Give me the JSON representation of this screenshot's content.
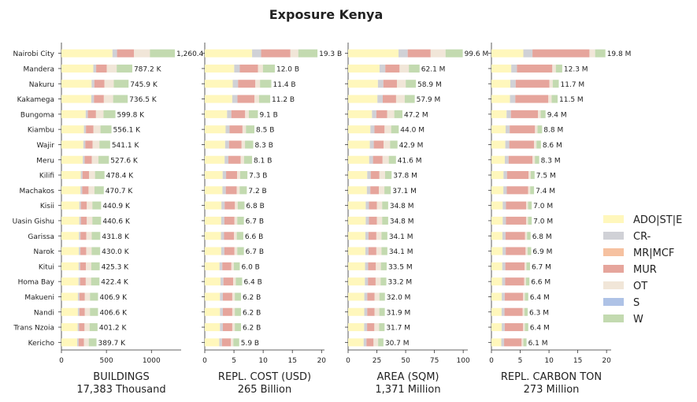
{
  "title": "Exposure Kenya",
  "legend": {
    "placement": "right",
    "items": [
      {
        "label": "ADO|ST|E",
        "color": "#fff7bc"
      },
      {
        "label": "CR-",
        "color": "#d0d1d6"
      },
      {
        "label": "MR|MCF",
        "color": "#f6c1a0"
      },
      {
        "label": "MUR",
        "color": "#e6a59c"
      },
      {
        "label": "OT",
        "color": "#f1e6d8"
      },
      {
        "label": "S",
        "color": "#aec2e6"
      },
      {
        "label": "W",
        "color": "#c3dab0"
      }
    ]
  },
  "chart_data": {
    "type": "bar",
    "orientation": "horizontal",
    "stacked": true,
    "categories": [
      "Nairobi City",
      "Mandera",
      "Nakuru",
      "Kakamega",
      "Bungoma",
      "Kiambu",
      "Wajir",
      "Meru",
      "Kilifi",
      "Machakos",
      "Kisii",
      "Uasin Gishu",
      "Garissa",
      "Narok",
      "Kitui",
      "Homa Bay",
      "Makueni",
      "Nandi",
      "Trans Nzoia",
      "Kericho"
    ],
    "panels": [
      {
        "xlabel": "BUILDINGS",
        "subtitle": "17,383 Thousand",
        "xlim": [
          0,
          1330
        ],
        "ticks": [
          0,
          500,
          1000
        ],
        "totals": [
          1260.4,
          787.2,
          745.9,
          736.5,
          599.8,
          556.1,
          541.1,
          527.6,
          478.4,
          470.7,
          440.9,
          440.6,
          431.8,
          430.0,
          425.3,
          422.4,
          406.9,
          406.6,
          401.2,
          389.7
        ],
        "labels": [
          "1,260.4",
          "787.2 K",
          "745.9 K",
          "736.5 K",
          "599.8 K",
          "556.1 K",
          "541.1 K",
          "527.6 K",
          "478.4 K",
          "470.7 K",
          "440.9 K",
          "440.6 K",
          "431.8 K",
          "430.0 K",
          "425.3 K",
          "422.4 K",
          "406.9 K",
          "406.6 K",
          "401.2 K",
          "389.7 K"
        ],
        "shares": [
          0.45,
          0.04,
          0,
          0.15,
          0.14,
          0,
          0.22
        ]
      },
      {
        "xlabel": "REPL. COST (USD)",
        "subtitle": "265 Billion",
        "xlim": [
          0,
          20.5
        ],
        "ticks": [
          0,
          5,
          10,
          15,
          20
        ],
        "totals": [
          19.3,
          12.0,
          11.4,
          11.2,
          9.1,
          8.5,
          8.3,
          8.1,
          7.3,
          7.2,
          6.8,
          6.7,
          6.6,
          6.7,
          6.0,
          6.4,
          6.2,
          6.2,
          6.2,
          5.9
        ],
        "labels": [
          "19.3 B",
          "12.0 B",
          "11.4 B",
          "11.2 B",
          "9.1 B",
          "8.5 B",
          "8.3 B",
          "8.1 B",
          "7.3 B",
          "7.2 B",
          "6.8 B",
          "6.7 B",
          "6.6 B",
          "6.7 B",
          "6.0 B",
          "6.4 B",
          "6.2 B",
          "6.2 B",
          "6.2 B",
          "5.9 B"
        ],
        "shares": [
          0.42,
          0.08,
          0,
          0.26,
          0.07,
          0,
          0.17
        ]
      },
      {
        "xlabel": "AREA (SQM)",
        "subtitle": "1,371 Million",
        "xlim": [
          0,
          104
        ],
        "ticks": [
          0,
          25,
          50,
          75,
          100
        ],
        "totals": [
          99.6,
          62.1,
          58.9,
          57.9,
          47.2,
          44.0,
          42.9,
          41.6,
          37.8,
          37.1,
          34.8,
          34.8,
          34.1,
          34.1,
          33.5,
          33.2,
          32.0,
          31.9,
          31.7,
          30.7
        ],
        "labels": [
          "99.6 M",
          "62.1 M",
          "58.9 M",
          "57.9 M",
          "47.2 M",
          "44.0 M",
          "42.9 M",
          "41.6 M",
          "37.8 M",
          "37.1 M",
          "34.8 M",
          "34.8 M",
          "34.1 M",
          "34.1 M",
          "33.5 M",
          "33.2 M",
          "32.0 M",
          "31.9 M",
          "31.7 M",
          "30.7 M"
        ],
        "shares": [
          0.44,
          0.08,
          0,
          0.2,
          0.13,
          0,
          0.15
        ]
      },
      {
        "xlabel": "REPL. CARBON TON",
        "subtitle": "273 Million",
        "xlim": [
          0,
          20.8
        ],
        "ticks": [
          0,
          5,
          10,
          15,
          20
        ],
        "totals": [
          19.8,
          12.3,
          11.7,
          11.5,
          9.4,
          8.8,
          8.6,
          8.3,
          7.5,
          7.4,
          7.0,
          7.0,
          6.8,
          6.9,
          6.7,
          6.6,
          6.4,
          6.3,
          6.4,
          6.1
        ],
        "labels": [
          "19.8 M",
          "12.3 M",
          "11.7 M",
          "11.5 M",
          "9.4 M",
          "8.8 M",
          "8.6 M",
          "8.3 M",
          "7.5 M",
          "7.4 M",
          "7.0 M",
          "7.0 M",
          "6.8 M",
          "6.9 M",
          "6.7 M",
          "6.6 M",
          "6.4 M",
          "6.3 M",
          "6.4 M",
          "6.1 M"
        ],
        "shares": [
          0.28,
          0.08,
          0,
          0.5,
          0.05,
          0,
          0.09
        ]
      }
    ]
  }
}
